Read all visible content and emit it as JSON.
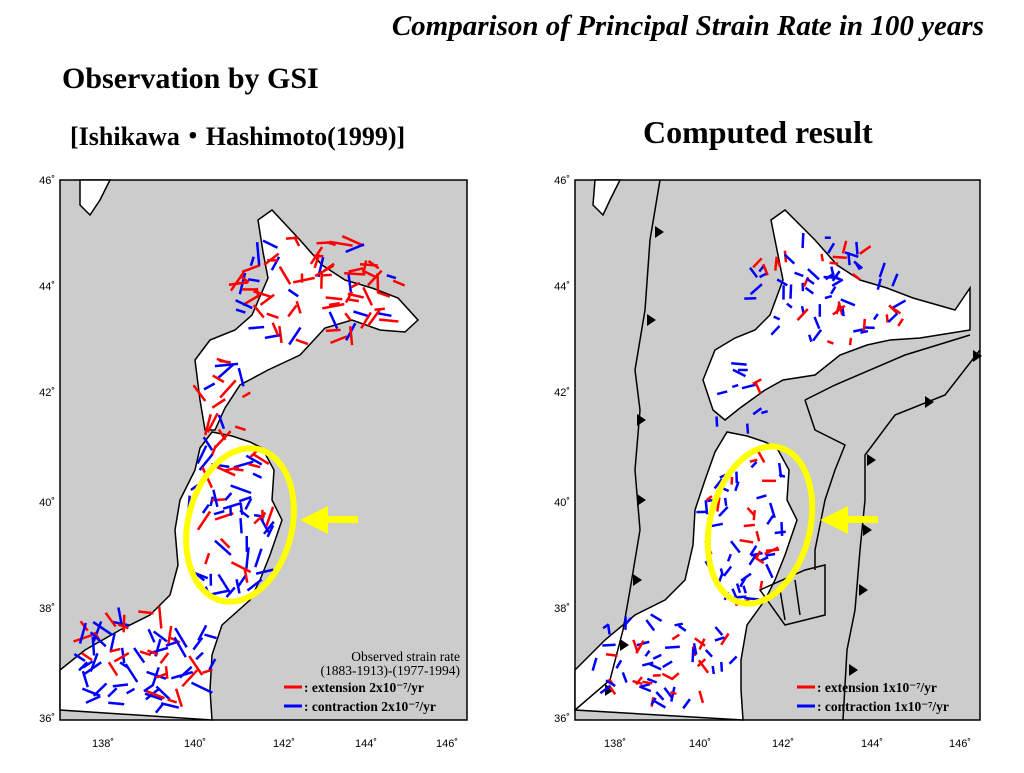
{
  "title": "Comparison of Principal Strain Rate in 100 years",
  "left": {
    "heading": "Observation by GSI",
    "subheading": "[Ishikawa・Hashimoto(1999)]",
    "legend": {
      "line1": "Observed strain rate",
      "line2": "(1883-1913)-(1977-1994)",
      "extension": ": extension 2x10⁻⁷/yr",
      "contraction": ": contraction 2x10⁻⁷/yr"
    }
  },
  "right": {
    "heading": "Computed result",
    "legend": {
      "extension": ": extension 1x10⁻⁷/yr",
      "contraction": ": contraction 1x10⁻⁷/yr"
    }
  },
  "axes": {
    "lat_labels": [
      "46˚",
      "44˚",
      "42˚",
      "40˚",
      "38˚",
      "36˚"
    ],
    "lon_labels": [
      "138˚",
      "140˚",
      "142˚",
      "144˚",
      "146˚"
    ],
    "lat_range": [
      36,
      46
    ],
    "lon_range": [
      137,
      147
    ]
  },
  "colors": {
    "sea": "#cccccc",
    "land": "#ffffff",
    "extension": "#ff0000",
    "contraction": "#0000ff",
    "highlight": "#ffff00"
  }
}
